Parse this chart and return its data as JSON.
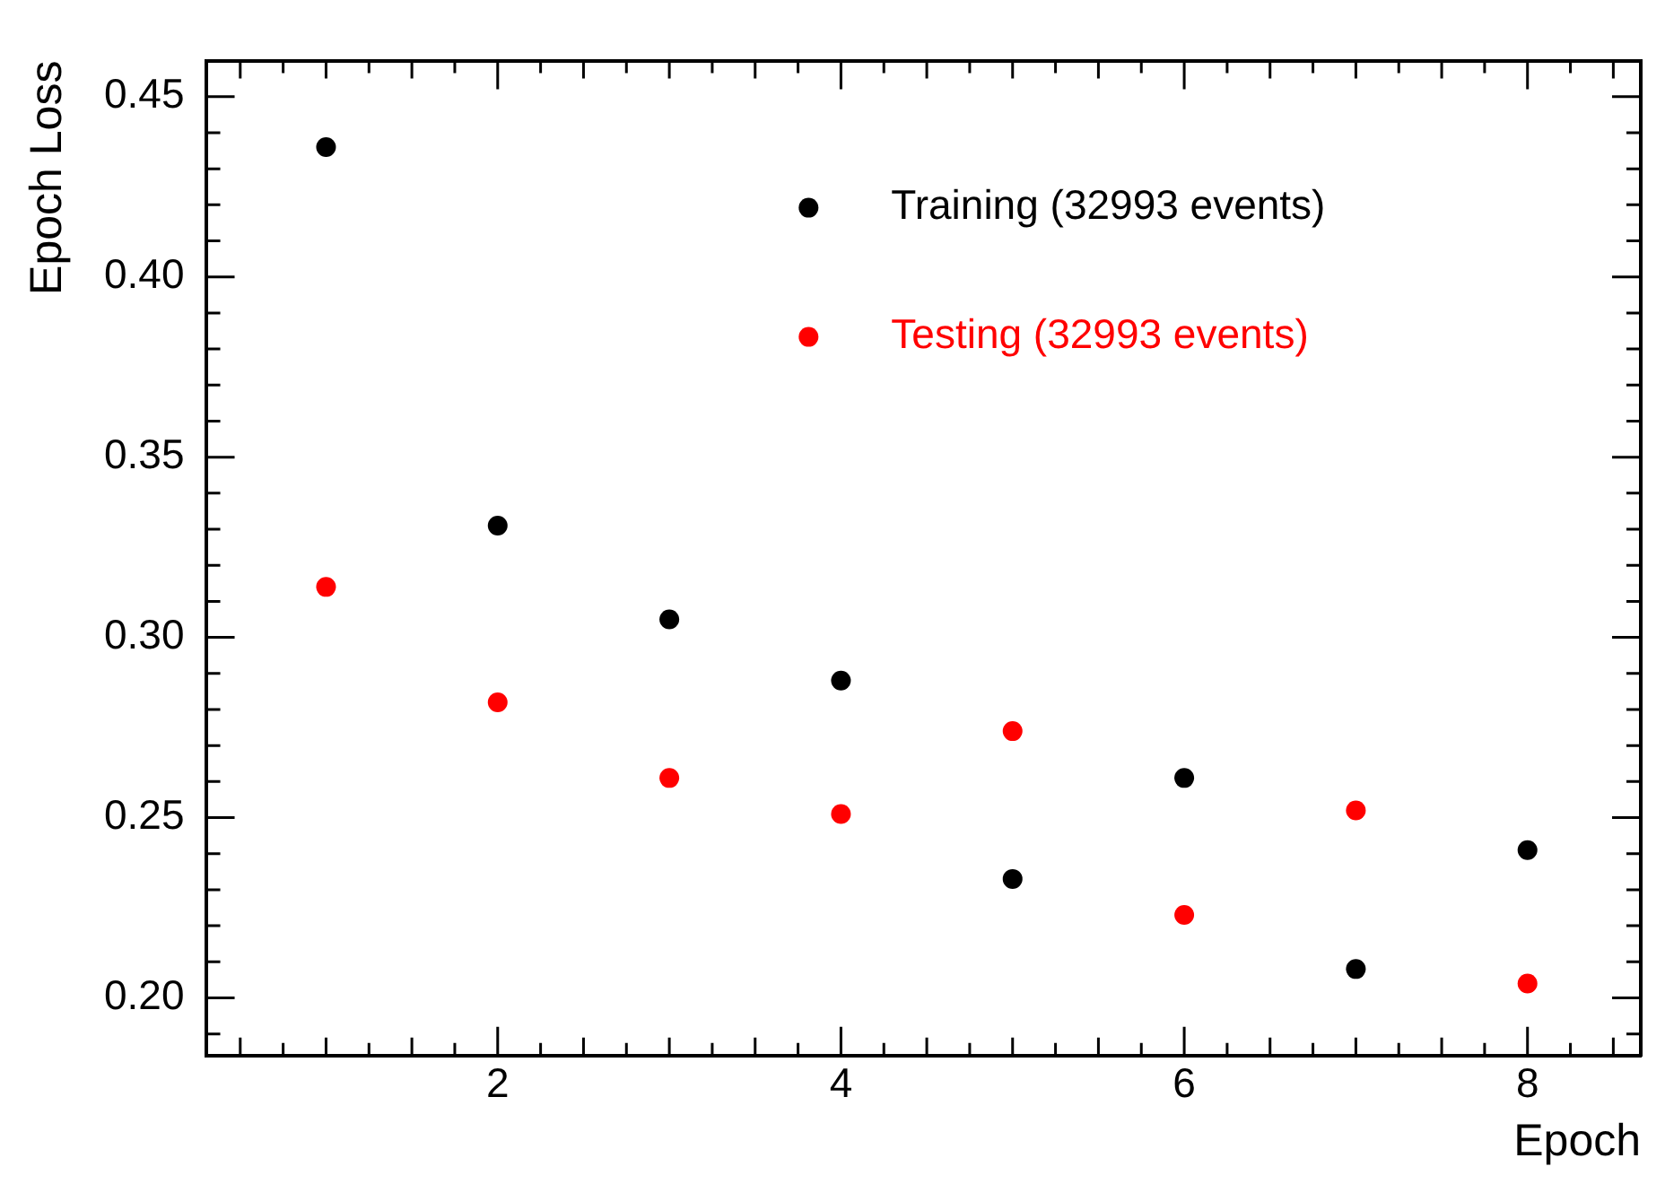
{
  "chart_data": {
    "type": "scatter",
    "xlabel": "Epoch",
    "ylabel": "Epoch Loss",
    "x": [
      1,
      2,
      3,
      4,
      5,
      6,
      7,
      8
    ],
    "series": [
      {
        "name": "Training (32993 events)",
        "color": "#000000",
        "values": [
          0.436,
          0.331,
          0.305,
          0.288,
          0.233,
          0.261,
          0.208,
          0.241
        ]
      },
      {
        "name": "Testing (32993 events)",
        "color": "#ff0000",
        "values": [
          0.314,
          0.282,
          0.261,
          0.251,
          0.274,
          0.223,
          0.252,
          0.204
        ]
      }
    ],
    "xlim": [
      0.3,
      8.66
    ],
    "xticks": [
      2,
      4,
      6,
      8
    ],
    "ylim": [
      0.184,
      0.46
    ],
    "yticks": [
      {
        "value": 0.2,
        "label": "0.20"
      },
      {
        "value": 0.25,
        "label": "0.25"
      },
      {
        "value": 0.3,
        "label": "0.30"
      },
      {
        "value": 0.35,
        "label": "0.35"
      },
      {
        "value": 0.4,
        "label": "0.40"
      },
      {
        "value": 0.45,
        "label": "0.45"
      }
    ],
    "grid": false,
    "legend": "top right",
    "marker": "circle"
  }
}
